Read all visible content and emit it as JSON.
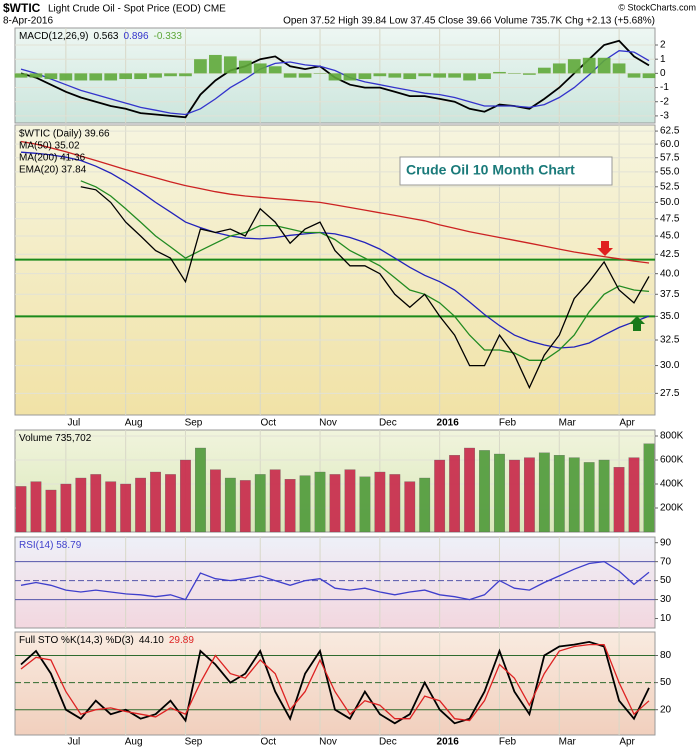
{
  "header": {
    "symbol": "$WTIC",
    "name": "Light Crude Oil - Spot Price (EOD) CME",
    "copyright": "© StockCharts.com",
    "date": "8-Apr-2016",
    "quote": "Open 37.52 High 39.84 Low 37.45 Close 39.66 Volume 735.7K Chg +2.13 (+5.68%)"
  },
  "annotation": "Crude Oil 10 Month Chart",
  "chart_data": [
    {
      "type": "line",
      "label": "MACD(12,26,9)",
      "legend": "inline",
      "ylim": [
        -3.5,
        3.2
      ],
      "yticks": [
        2,
        1,
        0,
        -1,
        -2,
        -3
      ],
      "grid": true,
      "series": [
        {
          "name": "0.563",
          "color": "#000000",
          "values": [
            0,
            -0.3,
            -0.8,
            -1.3,
            -1.7,
            -2,
            -2.3,
            -2.5,
            -2.8,
            -2.9,
            -3,
            -3.1,
            -1.5,
            -0.5,
            0.2,
            0.5,
            1,
            1.2,
            0.5,
            0.3,
            0.5,
            -0.3,
            -0.8,
            -1,
            -1,
            -1.3,
            -1.6,
            -1.6,
            -1.8,
            -2,
            -2.5,
            -2.7,
            -2.2,
            -2.3,
            -2.5,
            -1.8,
            -1,
            0,
            1,
            2,
            2.3,
            1.2,
            0.563
          ]
        },
        {
          "name": "0.896",
          "color": "#3333cc",
          "values": [
            0.3,
            0,
            -0.4,
            -0.8,
            -1.2,
            -1.5,
            -1.8,
            -2.1,
            -2.4,
            -2.6,
            -2.8,
            -2.9,
            -2.5,
            -1.8,
            -1,
            -0.4,
            0.3,
            0.7,
            0.8,
            0.6,
            0.5,
            0.2,
            -0.3,
            -0.6,
            -0.8,
            -1,
            -1.2,
            -1.4,
            -1.5,
            -1.7,
            -2,
            -2.3,
            -2.3,
            -2.3,
            -2.4,
            -2.2,
            -1.7,
            -1,
            -0.1,
            0.9,
            1.6,
            1.5,
            0.896
          ]
        },
        {
          "name": "-0.333",
          "color": "#5fa83a",
          "style": "histogram",
          "values": [
            -0.3,
            -0.3,
            -0.4,
            -0.5,
            -0.5,
            -0.5,
            -0.5,
            -0.4,
            -0.4,
            -0.3,
            -0.2,
            -0.2,
            1,
            1.3,
            1.2,
            0.9,
            0.7,
            0.5,
            -0.3,
            -0.3,
            0,
            -0.5,
            -0.5,
            -0.4,
            -0.2,
            -0.3,
            -0.4,
            -0.2,
            -0.3,
            -0.3,
            -0.5,
            -0.4,
            0.1,
            0,
            -0.1,
            0.4,
            0.7,
            1,
            1.1,
            1.1,
            0.7,
            -0.3,
            -0.333
          ]
        }
      ]
    },
    {
      "type": "line",
      "legend": "stacked",
      "log_scale": true,
      "ylim": [
        25.7,
        63.7
      ],
      "grid": true,
      "categories": [
        null,
        null,
        null,
        "Jul",
        null,
        null,
        null,
        "Aug",
        null,
        null,
        null,
        "Sep",
        null,
        null,
        null,
        null,
        "Oct",
        null,
        null,
        null,
        "Nov",
        null,
        null,
        null,
        "Dec",
        null,
        null,
        null,
        "2016",
        null,
        null,
        null,
        "Feb",
        null,
        null,
        null,
        "Mar",
        null,
        null,
        null,
        "Apr",
        null,
        null
      ],
      "yticks": [
        {
          "value": 62.5,
          "label": "62.5"
        },
        {
          "value": 60,
          "label": "60.0"
        },
        {
          "value": 57.5,
          "label": "57.5"
        },
        {
          "value": 55,
          "label": "55.0"
        },
        {
          "value": 52.5,
          "label": "52.5"
        },
        {
          "value": 50,
          "label": "50.0"
        },
        {
          "value": 47.5,
          "label": "47.5"
        },
        {
          "value": 45,
          "label": "45.0"
        },
        {
          "value": 42.5,
          "label": "42.5"
        },
        {
          "value": 40,
          "label": "40.0"
        },
        {
          "value": 37.5,
          "label": "37.5"
        },
        {
          "value": 35,
          "label": "35.0"
        },
        {
          "value": 32.5,
          "label": "32.5"
        },
        {
          "value": 30,
          "label": "30.0"
        },
        {
          "value": 27.5,
          "label": "27.5"
        }
      ],
      "hlines": [
        {
          "value": 41.8,
          "color": "#1a8a1a"
        },
        {
          "value": 35,
          "color": "#1a8a1a"
        }
      ],
      "series": [
        {
          "name": "$WTIC (Daily) 39.66",
          "color": "#000000",
          "values": [
            null,
            null,
            null,
            null,
            52.5,
            52,
            50,
            47,
            45,
            43,
            42,
            39,
            46,
            45.5,
            46,
            45,
            49,
            47,
            44,
            46,
            47,
            43,
            41,
            41,
            40,
            37.5,
            36,
            37.5,
            35,
            33,
            30,
            30,
            33,
            31,
            28,
            31,
            33,
            37,
            39,
            41.5,
            38,
            36.5,
            39.66
          ]
        },
        {
          "name": "MA(50) 35.02",
          "color": "#2222bb",
          "values": [
            58.5,
            58.3,
            58,
            57.6,
            57,
            56,
            54.8,
            53.3,
            51.7,
            50,
            48.5,
            47,
            46.2,
            45.5,
            45,
            44.7,
            44.6,
            44.8,
            45.1,
            45.3,
            45.5,
            45.3,
            44.8,
            44.1,
            43.2,
            42,
            40.8,
            39.8,
            39,
            38,
            36.6,
            35.2,
            34,
            33,
            32.4,
            32,
            31.7,
            31.8,
            32.2,
            33,
            33.8,
            34.4,
            35.02
          ]
        },
        {
          "name": "MA(200) 41.36",
          "color": "#cc2222",
          "values": [
            60.5,
            60,
            59.3,
            58.6,
            57.8,
            57,
            56.2,
            55.4,
            54.7,
            54,
            53.3,
            52.7,
            52.2,
            51.7,
            51.3,
            51,
            50.8,
            50.6,
            50.4,
            50.2,
            50,
            49.6,
            49.2,
            48.8,
            48.4,
            48,
            47.6,
            47.2,
            46.6,
            46.1,
            45.6,
            45.2,
            44.8,
            44.4,
            44,
            43.6,
            43.2,
            42.8,
            42.5,
            42.2,
            41.9,
            41.6,
            41.36
          ]
        },
        {
          "name": "EMA(20) 37.84",
          "color": "#228b22",
          "values": [
            null,
            null,
            null,
            null,
            53.5,
            52.5,
            51,
            49,
            47,
            45,
            43.5,
            42,
            43,
            44,
            45,
            45.5,
            46.5,
            46.5,
            46,
            45.5,
            45.5,
            44.5,
            43,
            42,
            41,
            39.5,
            38,
            37.5,
            36.5,
            35,
            33,
            31.5,
            31.5,
            31.2,
            30.5,
            30.5,
            31.5,
            33,
            35.5,
            37.5,
            38.5,
            38,
            37.84
          ]
        }
      ]
    },
    {
      "type": "bar",
      "legend": "inline",
      "up_color": "#4f9a3a",
      "down_color": "#c8284a",
      "ylim": [
        0,
        850000
      ],
      "grid": true,
      "yticks": [
        {
          "value": 800000,
          "label": "800K"
        },
        {
          "value": 600000,
          "label": "600K"
        },
        {
          "value": 400000,
          "label": "400K"
        },
        {
          "value": 200000,
          "label": "200K"
        }
      ],
      "series": [
        {
          "name": "Volume 735,702",
          "color": "#000000",
          "values": [
            380000,
            420000,
            350000,
            400000,
            450000,
            480000,
            420000,
            400000,
            450000,
            500000,
            480000,
            600000,
            700000,
            520000,
            450000,
            430000,
            480000,
            520000,
            440000,
            470000,
            500000,
            480000,
            520000,
            460000,
            500000,
            480000,
            420000,
            450000,
            600000,
            640000,
            700000,
            680000,
            650000,
            600000,
            620000,
            660000,
            640000,
            620000,
            580000,
            600000,
            540000,
            620000,
            735702
          ]
        }
      ]
    },
    {
      "type": "line",
      "legend": "inline",
      "ylim": [
        0,
        96
      ],
      "yticks": [
        90,
        70,
        50,
        30,
        10
      ],
      "grid": false,
      "hlines": [
        {
          "value": 70,
          "color": "#5555aa"
        },
        {
          "value": 50,
          "color": "#5555aa",
          "dash": true
        },
        {
          "value": 30,
          "color": "#5555aa"
        }
      ],
      "series": [
        {
          "name": "RSI(14) 58.79",
          "color": "#3f3fcc",
          "values": [
            45,
            48,
            45,
            40,
            38,
            40,
            38,
            36,
            35,
            33,
            35,
            30,
            58,
            52,
            50,
            52,
            55,
            50,
            45,
            50,
            52,
            42,
            40,
            42,
            38,
            35,
            38,
            40,
            35,
            33,
            30,
            35,
            50,
            42,
            40,
            48,
            55,
            62,
            68,
            70,
            60,
            46,
            58.79
          ]
        }
      ]
    },
    {
      "type": "line",
      "label": "Full STO %K(14,3) %D(3)",
      "legend": "inline",
      "ylim": [
        -8,
        106
      ],
      "yticks": [
        80,
        50,
        20
      ],
      "grid": false,
      "hlines": [
        {
          "value": 80,
          "color": "#2f6b2f"
        },
        {
          "value": 50,
          "color": "#2f6b2f",
          "dash": true
        },
        {
          "value": 20,
          "color": "#2f6b2f"
        }
      ],
      "series": [
        {
          "name": "44.10",
          "color": "#000000",
          "values": [
            70,
            85,
            60,
            20,
            10,
            30,
            15,
            20,
            10,
            15,
            30,
            8,
            85,
            70,
            50,
            60,
            85,
            40,
            10,
            60,
            85,
            20,
            10,
            40,
            15,
            5,
            15,
            50,
            20,
            5,
            10,
            40,
            85,
            40,
            15,
            80,
            90,
            92,
            95,
            90,
            30,
            10,
            44.1
          ]
        },
        {
          "name": "29.89",
          "color": "#dd2222",
          "values": [
            65,
            78,
            75,
            40,
            15,
            20,
            22,
            18,
            15,
            12,
            22,
            15,
            50,
            80,
            60,
            55,
            75,
            60,
            20,
            40,
            75,
            40,
            15,
            30,
            25,
            10,
            10,
            35,
            30,
            10,
            8,
            30,
            70,
            55,
            25,
            60,
            85,
            90,
            92,
            92,
            50,
            15,
            29.89
          ]
        }
      ]
    }
  ]
}
